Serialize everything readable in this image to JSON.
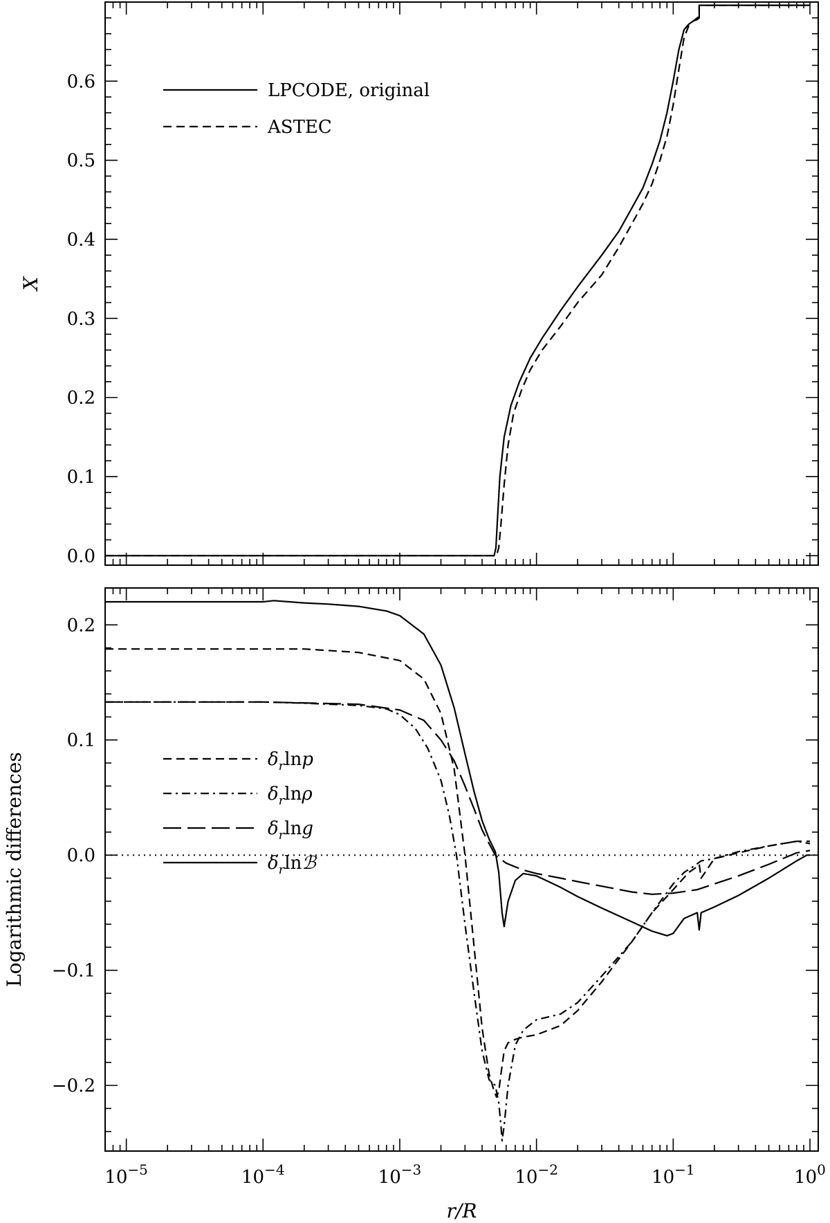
{
  "chart_data": [
    {
      "type": "line",
      "title": "",
      "xlabel": "",
      "ylabel": "X",
      "xscale": "log",
      "xlim": [
        7e-06,
        1.15
      ],
      "ylim": [
        -0.012,
        0.7
      ],
      "xticks": [
        {
          "value": 1e-05,
          "label": "10^-5"
        },
        {
          "value": 0.0001,
          "label": "10^-4"
        },
        {
          "value": 0.001,
          "label": "10^-3"
        },
        {
          "value": 0.01,
          "label": "10^-2"
        },
        {
          "value": 0.1,
          "label": "10^-1"
        },
        {
          "value": 1,
          "label": "10^0"
        }
      ],
      "yticks": [
        {
          "value": 0.0,
          "label": "0.0"
        },
        {
          "value": 0.1,
          "label": "0.1"
        },
        {
          "value": 0.2,
          "label": "0.2"
        },
        {
          "value": 0.3,
          "label": "0.3"
        },
        {
          "value": 0.4,
          "label": "0.4"
        },
        {
          "value": 0.5,
          "label": "0.5"
        },
        {
          "value": 0.6,
          "label": "0.6"
        }
      ],
      "show_xtick_labels": false,
      "legend": {
        "placement": "top-left"
      },
      "series": [
        {
          "name": "LPCODE, original",
          "style": "solid",
          "x": [
            7e-06,
            1e-05,
            0.0001,
            0.001,
            0.0049,
            0.00505,
            0.0052,
            0.0054,
            0.0058,
            0.0065,
            0.0075,
            0.009,
            0.011,
            0.015,
            0.02,
            0.03,
            0.04,
            0.05,
            0.06,
            0.07,
            0.08,
            0.09,
            0.1,
            0.11,
            0.12,
            0.13,
            0.14,
            0.15,
            0.155,
            0.155,
            0.2,
            0.5,
            1.0
          ],
          "y": [
            0.0,
            0.0,
            0.0,
            0.0,
            0.0,
            0.01,
            0.05,
            0.1,
            0.15,
            0.19,
            0.22,
            0.25,
            0.275,
            0.31,
            0.34,
            0.38,
            0.41,
            0.44,
            0.465,
            0.495,
            0.525,
            0.56,
            0.6,
            0.64,
            0.665,
            0.672,
            0.676,
            0.678,
            0.68,
            0.696,
            0.696,
            0.696,
            0.696
          ]
        },
        {
          "name": "ASTEC",
          "style": "dashed",
          "x": [
            7e-06,
            1e-05,
            0.0001,
            0.001,
            0.0051,
            0.0053,
            0.0055,
            0.0058,
            0.0062,
            0.0068,
            0.0078,
            0.009,
            0.011,
            0.015,
            0.02,
            0.03,
            0.04,
            0.05,
            0.06,
            0.07,
            0.08,
            0.09,
            0.1,
            0.11,
            0.12,
            0.13,
            0.14,
            0.15,
            0.155,
            0.155,
            0.2,
            0.5,
            1.0
          ],
          "y": [
            0.0,
            0.0,
            0.0,
            0.0,
            0.0,
            0.01,
            0.04,
            0.09,
            0.14,
            0.18,
            0.21,
            0.235,
            0.26,
            0.29,
            0.32,
            0.355,
            0.39,
            0.42,
            0.445,
            0.47,
            0.5,
            0.53,
            0.57,
            0.615,
            0.655,
            0.67,
            0.676,
            0.68,
            0.682,
            0.696,
            0.696,
            0.696,
            0.696
          ]
        }
      ]
    },
    {
      "type": "line",
      "title": "",
      "xlabel": "r/R",
      "ylabel": "Logarithmic differences",
      "xscale": "log",
      "xlim": [
        7e-06,
        1.15
      ],
      "ylim": [
        -0.257,
        0.232
      ],
      "xticks": [
        {
          "value": 1e-05,
          "label": "10^-5"
        },
        {
          "value": 0.0001,
          "label": "10^-4"
        },
        {
          "value": 0.001,
          "label": "10^-3"
        },
        {
          "value": 0.01,
          "label": "10^-2"
        },
        {
          "value": 0.1,
          "label": "10^-1"
        },
        {
          "value": 1,
          "label": "10^0"
        }
      ],
      "yticks": [
        {
          "value": -0.2,
          "label": "−0.2"
        },
        {
          "value": -0.1,
          "label": "−0.1"
        },
        {
          "value": 0.0,
          "label": "0.0"
        },
        {
          "value": 0.1,
          "label": "0.1"
        },
        {
          "value": 0.2,
          "label": "0.2"
        }
      ],
      "show_xtick_labels": true,
      "zero_line": {
        "y": 0.0,
        "style": "dotted"
      },
      "legend": {
        "placement": "bottom-left"
      },
      "series": [
        {
          "name": "δ_r ln p",
          "label_parts": [
            "δ",
            "r",
            "ln",
            "p"
          ],
          "style": "dashed",
          "x": [
            7e-06,
            1e-05,
            0.0001,
            0.0002,
            0.0005,
            0.001,
            0.0015,
            0.002,
            0.0025,
            0.003,
            0.0035,
            0.004,
            0.0045,
            0.0049,
            0.0051,
            0.0053,
            0.0055,
            0.0058,
            0.0062,
            0.007,
            0.008,
            0.01,
            0.015,
            0.02,
            0.03,
            0.05,
            0.07,
            0.1,
            0.13,
            0.15,
            0.155,
            0.16,
            0.2,
            0.3,
            0.5,
            0.8,
            1.0
          ],
          "y": [
            0.179,
            0.179,
            0.179,
            0.179,
            0.176,
            0.169,
            0.153,
            0.123,
            0.075,
            0.0,
            -0.08,
            -0.15,
            -0.19,
            -0.205,
            -0.21,
            -0.205,
            -0.19,
            -0.17,
            -0.163,
            -0.16,
            -0.158,
            -0.156,
            -0.148,
            -0.135,
            -0.11,
            -0.075,
            -0.05,
            -0.03,
            -0.015,
            -0.01,
            -0.008,
            -0.02,
            -0.003,
            0.002,
            0.008,
            0.012,
            0.012
          ]
        },
        {
          "name": "δ_r ln ρ",
          "label_parts": [
            "δ",
            "r",
            "ln",
            "ρ"
          ],
          "style": "dashdot",
          "x": [
            7e-06,
            1e-05,
            0.0001,
            0.0002,
            0.0005,
            0.0008,
            0.001,
            0.0013,
            0.0016,
            0.002,
            0.0023,
            0.0026,
            0.003,
            0.0035,
            0.004,
            0.0045,
            0.005,
            0.0053,
            0.0055,
            0.0056,
            0.0058,
            0.0062,
            0.007,
            0.008,
            0.01,
            0.015,
            0.02,
            0.03,
            0.05,
            0.07,
            0.1,
            0.12,
            0.14,
            0.16,
            0.2,
            0.3,
            0.5,
            0.8,
            1.0
          ],
          "y": [
            0.133,
            0.133,
            0.133,
            0.132,
            0.13,
            0.127,
            0.122,
            0.11,
            0.093,
            0.065,
            0.035,
            0.0,
            -0.06,
            -0.12,
            -0.17,
            -0.195,
            -0.2,
            -0.215,
            -0.235,
            -0.248,
            -0.235,
            -0.2,
            -0.165,
            -0.152,
            -0.143,
            -0.138,
            -0.128,
            -0.105,
            -0.075,
            -0.05,
            -0.025,
            -0.015,
            -0.01,
            -0.005,
            -0.003,
            0.003,
            0.008,
            0.012,
            0.01
          ]
        },
        {
          "name": "δ_r ln g",
          "label_parts": [
            "δ",
            "r",
            "ln",
            "g"
          ],
          "style": "longdash",
          "x": [
            7e-06,
            1e-05,
            0.0001,
            0.0005,
            0.001,
            0.0015,
            0.002,
            0.0025,
            0.003,
            0.0035,
            0.004,
            0.0045,
            0.005,
            0.006,
            0.008,
            0.01,
            0.015,
            0.02,
            0.03,
            0.05,
            0.07,
            0.1,
            0.15,
            0.2,
            0.3,
            0.5,
            0.8,
            1.0
          ],
          "y": [
            0.133,
            0.133,
            0.133,
            0.131,
            0.126,
            0.117,
            0.1,
            0.082,
            0.06,
            0.04,
            0.022,
            0.01,
            0.0,
            -0.007,
            -0.013,
            -0.016,
            -0.02,
            -0.023,
            -0.027,
            -0.032,
            -0.034,
            -0.033,
            -0.03,
            -0.025,
            -0.018,
            -0.008,
            0.002,
            0.004
          ]
        },
        {
          "name": "δ_r ln ℬ",
          "label_parts": [
            "δ",
            "r",
            "ln",
            "ℬ"
          ],
          "style": "solid",
          "x": [
            7e-06,
            1e-05,
            0.0001,
            0.00012,
            0.0002,
            0.0003,
            0.0005,
            0.0008,
            0.001,
            0.0015,
            0.002,
            0.0025,
            0.003,
            0.0035,
            0.004,
            0.0045,
            0.005,
            0.0053,
            0.0056,
            0.0058,
            0.0062,
            0.007,
            0.008,
            0.01,
            0.015,
            0.02,
            0.03,
            0.05,
            0.07,
            0.09,
            0.1,
            0.12,
            0.15,
            0.155,
            0.16,
            0.2,
            0.3,
            0.5,
            0.8,
            0.95,
            1.0
          ],
          "y": [
            0.22,
            0.22,
            0.22,
            0.221,
            0.219,
            0.218,
            0.216,
            0.212,
            0.208,
            0.192,
            0.165,
            0.128,
            0.088,
            0.055,
            0.03,
            0.014,
            0.003,
            -0.015,
            -0.05,
            -0.062,
            -0.04,
            -0.022,
            -0.016,
            -0.018,
            -0.028,
            -0.036,
            -0.046,
            -0.058,
            -0.066,
            -0.07,
            -0.068,
            -0.055,
            -0.05,
            -0.065,
            -0.05,
            -0.045,
            -0.035,
            -0.02,
            -0.005,
            0.0,
            0.0
          ]
        }
      ]
    }
  ]
}
